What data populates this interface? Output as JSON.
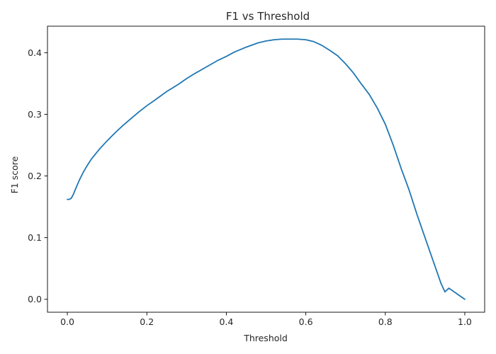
{
  "chart_data": {
    "type": "line",
    "title": "F1 vs Threshold",
    "xlabel": "Threshold",
    "ylabel": "F1 score",
    "xlim": [
      -0.05,
      1.05
    ],
    "ylim": [
      -0.021,
      0.443
    ],
    "xticks": [
      0.0,
      0.2,
      0.4,
      0.6,
      0.8,
      1.0
    ],
    "xtick_labels": [
      "0.0",
      "0.2",
      "0.4",
      "0.6",
      "0.8",
      "1.0"
    ],
    "yticks": [
      0.0,
      0.1,
      0.2,
      0.3,
      0.4
    ],
    "ytick_labels": [
      "0.0",
      "0.1",
      "0.2",
      "0.3",
      "0.4"
    ],
    "grid": false,
    "legend": "none",
    "line_color": "#1f77b4",
    "series": [
      {
        "x": [
          0.0,
          0.005,
          0.01,
          0.015,
          0.02,
          0.03,
          0.04,
          0.05,
          0.06,
          0.07,
          0.08,
          0.1,
          0.12,
          0.14,
          0.16,
          0.18,
          0.2,
          0.22,
          0.25,
          0.28,
          0.3,
          0.32,
          0.35,
          0.38,
          0.4,
          0.42,
          0.45,
          0.48,
          0.5,
          0.52,
          0.54,
          0.56,
          0.58,
          0.6,
          0.62,
          0.64,
          0.66,
          0.68,
          0.7,
          0.72,
          0.74,
          0.76,
          0.78,
          0.8,
          0.82,
          0.84,
          0.86,
          0.88,
          0.9,
          0.92,
          0.94,
          0.95,
          0.96,
          0.98,
          1.0
        ],
        "y": [
          0.162,
          0.162,
          0.164,
          0.17,
          0.178,
          0.193,
          0.206,
          0.217,
          0.227,
          0.235,
          0.243,
          0.257,
          0.27,
          0.282,
          0.293,
          0.304,
          0.314,
          0.323,
          0.337,
          0.349,
          0.358,
          0.366,
          0.377,
          0.388,
          0.394,
          0.401,
          0.409,
          0.416,
          0.419,
          0.421,
          0.422,
          0.422,
          0.422,
          0.421,
          0.418,
          0.412,
          0.404,
          0.395,
          0.382,
          0.367,
          0.349,
          0.332,
          0.31,
          0.284,
          0.25,
          0.212,
          0.177,
          0.137,
          0.1,
          0.063,
          0.026,
          0.012,
          0.018,
          0.009,
          0.0
        ]
      }
    ]
  }
}
